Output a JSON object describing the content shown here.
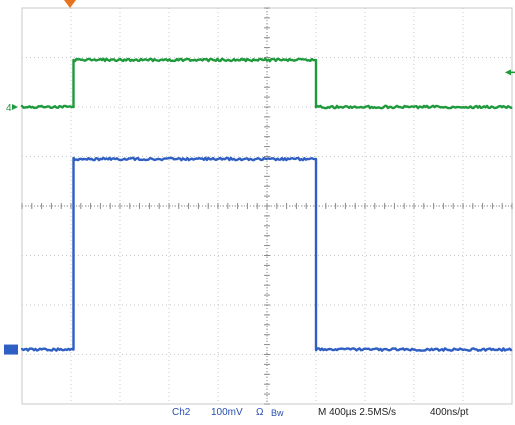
{
  "readout": {
    "channel": "Ch2",
    "scale": "100mV",
    "impedance": "Ω",
    "bandwidth": "Bw",
    "timebase": "M 400µs 2.5MS/s",
    "resolution": "400ns/pt"
  },
  "markers": {
    "ch4_label": "4"
  },
  "colors": {
    "grid": "#c8c8c8",
    "grid_axis": "#8a8a8a",
    "ch4": "#1e9a3c",
    "ch2": "#2f5fc4",
    "trigger": "#e8731e"
  },
  "chart_data": {
    "type": "line",
    "x_unit": "div",
    "y_unit": "div",
    "xlim": [
      0,
      10
    ],
    "ylim": [
      -4,
      4
    ],
    "grid": true,
    "series": [
      {
        "name": "4",
        "x": [
          0,
          1.05,
          1.05,
          6.0,
          6.0,
          10
        ],
        "y": [
          2.0,
          2.0,
          2.95,
          2.95,
          2.0,
          2.0
        ]
      },
      {
        "name": "2",
        "x": [
          0,
          1.05,
          1.05,
          6.0,
          6.0,
          10
        ],
        "y": [
          -2.9,
          -2.9,
          0.95,
          0.95,
          -2.9,
          -2.9
        ]
      }
    ]
  }
}
